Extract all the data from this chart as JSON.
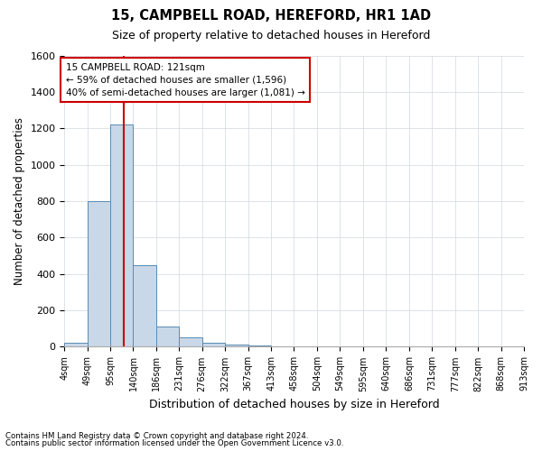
{
  "title1": "15, CAMPBELL ROAD, HEREFORD, HR1 1AD",
  "title2": "Size of property relative to detached houses in Hereford",
  "xlabel": "Distribution of detached houses by size in Hereford",
  "ylabel": "Number of detached properties",
  "footnote1": "Contains HM Land Registry data © Crown copyright and database right 2024.",
  "footnote2": "Contains public sector information licensed under the Open Government Licence v3.0.",
  "bins": [
    4,
    49,
    95,
    140,
    186,
    231,
    276,
    322,
    367,
    413,
    458,
    504,
    549,
    595,
    640,
    686,
    731,
    777,
    822,
    868,
    913
  ],
  "bar_heights": [
    20,
    800,
    1220,
    450,
    110,
    50,
    20,
    10,
    5,
    0,
    0,
    0,
    0,
    0,
    0,
    0,
    0,
    0,
    0,
    0
  ],
  "bar_color": "#c8d8e8",
  "bar_edge_color": "#5a8ab0",
  "property_size": 121,
  "property_line_color": "#cc0000",
  "annotation_line1": "15 CAMPBELL ROAD: 121sqm",
  "annotation_line2": "← 59% of detached houses are smaller (1,596)",
  "annotation_line3": "40% of semi-detached houses are larger (1,081) →",
  "annotation_box_color": "#cc0000",
  "ylim": [
    0,
    1600
  ],
  "yticks": [
    0,
    200,
    400,
    600,
    800,
    1000,
    1200,
    1400,
    1600
  ],
  "background_color": "#ffffff",
  "grid_color": "#d0d8e0"
}
